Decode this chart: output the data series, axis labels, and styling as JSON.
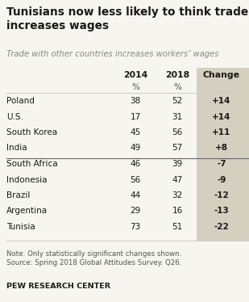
{
  "title": "Tunisians now less likely to think trade\nincreases wages",
  "subtitle": "Trade with other countries increases workers’ wages",
  "col_headers": [
    "2014",
    "2018",
    "Change"
  ],
  "col_sub": [
    "%",
    "%",
    ""
  ],
  "rows": [
    {
      "country": "Poland",
      "v2014": "38",
      "v2018": "52",
      "change": "+14"
    },
    {
      "country": "U.S.",
      "v2014": "17",
      "v2018": "31",
      "change": "+14"
    },
    {
      "country": "South Korea",
      "v2014": "45",
      "v2018": "56",
      "change": "+11"
    },
    {
      "country": "India",
      "v2014": "49",
      "v2018": "57",
      "change": "+8"
    },
    {
      "country": "South Africa",
      "v2014": "46",
      "v2018": "39",
      "change": "-7"
    },
    {
      "country": "Indonesia",
      "v2014": "56",
      "v2018": "47",
      "change": "-9"
    },
    {
      "country": "Brazil",
      "v2014": "44",
      "v2018": "32",
      "change": "-12"
    },
    {
      "country": "Argentina",
      "v2014": "29",
      "v2018": "16",
      "change": "-13"
    },
    {
      "country": "Tunisia",
      "v2014": "73",
      "v2018": "51",
      "change": "-22"
    }
  ],
  "divider_after_row": 3,
  "change_col_bg": "#d5cfc0",
  "note_line1": "Note: Only statistically significant changes shown.",
  "note_line2": "Source: Spring 2018 Global Attitudes Survey. Q26.",
  "source_label": "PEW RESEARCH CENTER",
  "bg_color": "#f7f5ef",
  "text_dark": "#1a1a1a",
  "text_gray": "#888888",
  "text_note": "#555555",
  "line_color_light": "#cccccc",
  "line_color_divider": "#666666",
  "title_fontsize": 9.8,
  "subtitle_fontsize": 7.2,
  "header_fontsize": 7.8,
  "data_fontsize": 7.5,
  "note_fontsize": 6.2,
  "pew_fontsize": 6.8
}
